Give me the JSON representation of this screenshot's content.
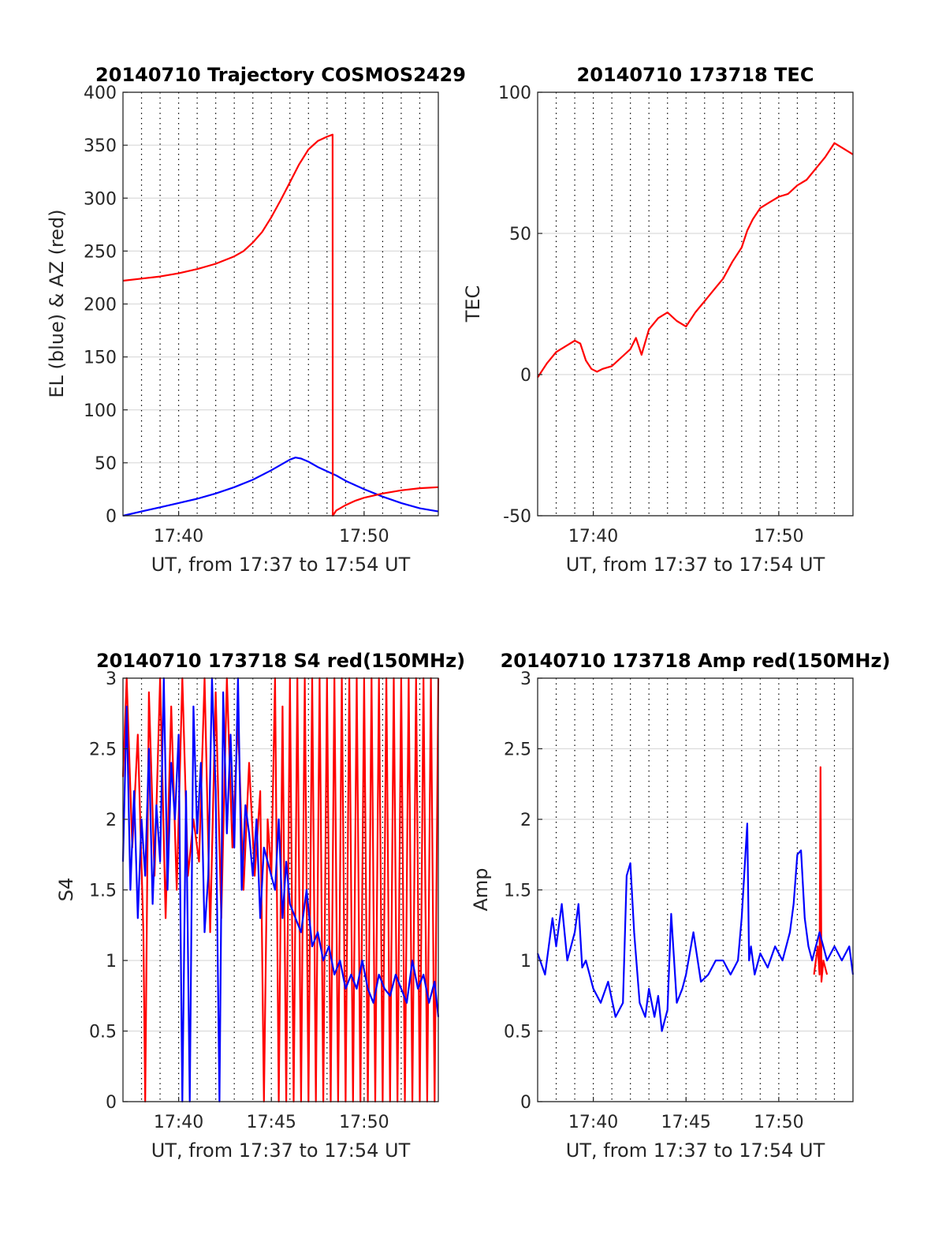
{
  "colors": {
    "red": "#ff0000",
    "blue": "#0000ff",
    "axes": "#262626",
    "grid": "#dcdcdc",
    "minor": "#000000"
  },
  "chart_data": [
    {
      "id": "traj",
      "type": "line",
      "title": "20140710 Trajectory COSMOS2429",
      "xlabel": "UT, from 17:37 to 17:54 UT",
      "ylabel": "EL (blue) & AZ (red)",
      "xlim": [
        37.0,
        54.0
      ],
      "ylim": [
        0,
        400
      ],
      "x_ticks": [
        40,
        50
      ],
      "x_tick_labels": [
        "17:40",
        "17:50"
      ],
      "y_ticks": [
        0,
        50,
        100,
        150,
        200,
        250,
        300,
        350,
        400
      ],
      "y_tick_labels": [
        "0",
        "50",
        "100",
        "150",
        "200",
        "250",
        "300",
        "350",
        "400"
      ],
      "minor_x": [
        38,
        39,
        40,
        41,
        42,
        43,
        44,
        45,
        46,
        47,
        48,
        49,
        50,
        51,
        52,
        53
      ],
      "series": [
        {
          "name": "EL (blue)",
          "color": "blue",
          "x": [
            37.0,
            38.0,
            39.0,
            40.0,
            41.0,
            42.0,
            43.0,
            44.0,
            45.0,
            45.5,
            46.0,
            46.3,
            46.6,
            47.0,
            47.5,
            48.0,
            48.5,
            49.0,
            50.0,
            51.0,
            52.0,
            53.0,
            54.0
          ],
          "y": [
            0,
            4,
            8,
            12,
            16,
            21,
            27,
            34,
            43,
            48,
            53,
            55,
            54,
            51,
            46,
            42,
            38,
            33,
            25,
            18,
            12,
            7,
            4
          ]
        },
        {
          "name": "AZ (red)",
          "color": "red",
          "x": [
            37.0,
            38.0,
            39.0,
            40.0,
            41.0,
            42.0,
            43.0,
            43.5,
            44.0,
            44.5,
            45.0,
            45.5,
            46.0,
            46.5,
            47.0,
            47.5,
            48.0,
            48.3,
            48.31,
            48.5,
            49.0,
            49.5,
            50.0,
            51.0,
            52.0,
            53.0,
            54.0
          ],
          "y": [
            222,
            224,
            226,
            229,
            233,
            238,
            245,
            250,
            258,
            268,
            282,
            298,
            315,
            332,
            346,
            354,
            358,
            360,
            0,
            5,
            10,
            14,
            17,
            21,
            24,
            26,
            27
          ]
        }
      ]
    },
    {
      "id": "tec",
      "type": "line",
      "title": "20140710 173718 TEC",
      "xlabel": "UT, from 17:37 to 17:54 UT",
      "ylabel": "TEC",
      "xlim": [
        37.0,
        54.0
      ],
      "ylim": [
        -50,
        100
      ],
      "x_ticks": [
        40,
        50
      ],
      "x_tick_labels": [
        "17:40",
        "17:50"
      ],
      "y_ticks": [
        -50,
        0,
        50,
        100
      ],
      "y_tick_labels": [
        "-50",
        "0",
        "50",
        "100"
      ],
      "minor_x": [
        38,
        39,
        40,
        41,
        42,
        43,
        44,
        45,
        46,
        47,
        48,
        49,
        50,
        51,
        52,
        53
      ],
      "series": [
        {
          "name": "",
          "color": "red",
          "x": [
            37.0,
            37.5,
            38.0,
            38.5,
            39.0,
            39.3,
            39.6,
            39.9,
            40.2,
            40.5,
            41.0,
            41.5,
            42.0,
            42.3,
            42.6,
            43.0,
            43.5,
            44.0,
            44.5,
            45.0,
            45.5,
            46.0,
            46.5,
            47.0,
            47.5,
            48.0,
            48.3,
            48.6,
            49.0,
            49.5,
            50.0,
            50.5,
            51.0,
            51.5,
            52.0,
            52.5,
            53.0,
            53.5,
            54.0
          ],
          "y": [
            -1,
            4,
            8,
            10,
            12,
            11,
            5,
            2,
            1,
            2,
            3,
            6,
            9,
            13,
            7,
            16,
            20,
            22,
            19,
            17,
            22,
            26,
            30,
            34,
            40,
            45,
            51,
            55,
            59,
            61,
            63,
            64,
            67,
            69,
            73,
            77,
            82,
            80,
            78
          ]
        }
      ]
    },
    {
      "id": "s4",
      "type": "line",
      "title": "20140710 173718 S4 red(150MHz)",
      "xlabel": "UT, from 17:37 to 17:54 UT",
      "ylabel": "S4",
      "xlim": [
        37.0,
        54.0
      ],
      "ylim": [
        0,
        3
      ],
      "x_ticks": [
        40,
        45,
        50
      ],
      "x_tick_labels": [
        "17:40",
        "17:45",
        "17:50"
      ],
      "y_ticks": [
        0,
        0.5,
        1,
        1.5,
        2,
        2.5,
        3
      ],
      "y_tick_labels": [
        "0",
        "0.5",
        "1",
        "1.5",
        "2",
        "2.5",
        "3"
      ],
      "minor_x": [
        38,
        39,
        40,
        41,
        42,
        43,
        44,
        45,
        46,
        47,
        48,
        49,
        50,
        51,
        52,
        53
      ],
      "series": [
        {
          "name": "",
          "color": "red",
          "x": [
            37.0,
            37.2,
            37.5,
            37.8,
            38.1,
            38.2,
            38.4,
            38.7,
            39.0,
            39.3,
            39.6,
            39.9,
            40.2,
            40.5,
            40.8,
            41.1,
            41.4,
            41.7,
            42.0,
            42.3,
            42.6,
            42.9,
            43.2,
            43.5,
            43.8,
            44.1,
            44.4,
            44.6,
            44.8,
            45.0,
            45.2,
            45.4,
            45.6,
            45.8,
            46.0,
            46.2,
            46.4,
            46.6,
            46.8,
            47.0,
            47.2,
            47.4,
            47.6,
            47.8,
            48.0,
            48.2,
            48.4,
            48.6,
            48.8,
            49.0,
            49.2,
            49.4,
            49.6,
            49.8,
            50.0,
            50.2,
            50.4,
            50.6,
            50.8,
            51.0,
            51.2,
            51.4,
            51.6,
            51.8,
            52.0,
            52.2,
            52.4,
            52.6,
            52.8,
            53.0,
            53.2,
            53.4,
            53.6,
            53.8,
            54.0
          ],
          "y": [
            2.3,
            3.0,
            1.8,
            2.6,
            1.2,
            0.0,
            2.9,
            1.6,
            3.0,
            1.3,
            2.8,
            1.5,
            3.0,
            1.6,
            2.0,
            1.7,
            3.0,
            1.2,
            2.9,
            1.3,
            3.0,
            1.8,
            2.7,
            1.5,
            2.4,
            1.6,
            2.2,
            0.0,
            2.0,
            1.6,
            3.0,
            0.0,
            2.8,
            0.0,
            3.0,
            0.0,
            3.0,
            0.0,
            3.0,
            0.0,
            3.0,
            0.0,
            3.0,
            0.0,
            3.0,
            0.0,
            3.0,
            0.0,
            3.0,
            0.0,
            3.0,
            0.0,
            3.0,
            0.0,
            3.0,
            0.0,
            3.0,
            0.0,
            3.0,
            0.0,
            3.0,
            0.0,
            3.0,
            0.0,
            3.0,
            0.0,
            3.0,
            0.0,
            3.0,
            0.0,
            3.0,
            0.0,
            3.0,
            0.0,
            3.0
          ]
        },
        {
          "name": "",
          "color": "blue",
          "x": [
            37.0,
            37.2,
            37.4,
            37.6,
            37.8,
            38.0,
            38.2,
            38.4,
            38.6,
            38.8,
            39.0,
            39.2,
            39.4,
            39.6,
            39.8,
            40.0,
            40.2,
            40.4,
            40.6,
            40.8,
            41.0,
            41.2,
            41.4,
            41.6,
            41.8,
            42.0,
            42.2,
            42.4,
            42.6,
            42.8,
            43.0,
            43.2,
            43.4,
            43.6,
            43.8,
            44.0,
            44.2,
            44.4,
            44.6,
            44.8,
            45.0,
            45.2,
            45.4,
            45.6,
            45.8,
            46.0,
            46.3,
            46.6,
            46.9,
            47.2,
            47.5,
            47.8,
            48.1,
            48.4,
            48.7,
            49.0,
            49.3,
            49.6,
            49.9,
            50.2,
            50.5,
            50.8,
            51.1,
            51.4,
            51.7,
            52.0,
            52.3,
            52.6,
            52.9,
            53.2,
            53.5,
            53.8,
            54.0
          ],
          "y": [
            1.7,
            2.8,
            1.5,
            2.2,
            1.3,
            2.0,
            1.6,
            2.5,
            1.4,
            2.1,
            1.7,
            3.0,
            1.5,
            2.4,
            2.0,
            2.6,
            0.0,
            2.2,
            0.0,
            2.8,
            1.9,
            2.4,
            1.2,
            1.6,
            3.0,
            2.2,
            0.0,
            2.9,
            1.9,
            2.6,
            1.8,
            3.0,
            1.5,
            2.1,
            1.9,
            1.6,
            2.0,
            1.3,
            1.8,
            1.7,
            1.6,
            1.5,
            2.0,
            1.3,
            1.7,
            1.4,
            1.3,
            1.2,
            1.5,
            1.1,
            1.2,
            1.0,
            1.1,
            0.9,
            1.0,
            0.8,
            0.9,
            0.8,
            1.0,
            0.8,
            0.7,
            0.9,
            0.8,
            0.75,
            0.9,
            0.8,
            0.7,
            1.0,
            0.8,
            0.9,
            0.7,
            0.85,
            0.6
          ]
        }
      ]
    },
    {
      "id": "amp",
      "type": "line",
      "title": "20140710 173718 Amp red(150MHz)",
      "xlabel": "UT, from 17:37 to 17:54 UT",
      "ylabel": "Amp",
      "xlim": [
        37.0,
        54.0
      ],
      "ylim": [
        0,
        3
      ],
      "x_ticks": [
        40,
        45,
        50
      ],
      "x_tick_labels": [
        "17:40",
        "17:45",
        "17:50"
      ],
      "y_ticks": [
        0,
        0.5,
        1,
        1.5,
        2,
        2.5,
        3
      ],
      "y_tick_labels": [
        "0",
        "0.5",
        "1",
        "1.5",
        "2",
        "2.5",
        "3"
      ],
      "minor_x": [
        38,
        39,
        40,
        41,
        42,
        43,
        44,
        45,
        46,
        47,
        48,
        49,
        50,
        51,
        52,
        53
      ],
      "series": [
        {
          "name": "",
          "color": "red",
          "x": [
            51.9,
            52.1,
            52.2,
            52.25,
            52.3,
            52.4,
            52.6
          ],
          "y": [
            0.9,
            1.1,
            0.9,
            2.37,
            0.85,
            1.0,
            0.9
          ]
        },
        {
          "name": "",
          "color": "blue",
          "x": [
            37.0,
            37.4,
            37.8,
            38.0,
            38.3,
            38.6,
            39.0,
            39.2,
            39.4,
            39.6,
            40.0,
            40.4,
            40.8,
            41.2,
            41.6,
            41.8,
            42.0,
            42.2,
            42.5,
            42.8,
            43.0,
            43.3,
            43.5,
            43.7,
            44.0,
            44.2,
            44.5,
            44.8,
            45.0,
            45.4,
            45.8,
            46.2,
            46.6,
            47.0,
            47.4,
            47.8,
            48.0,
            48.3,
            48.4,
            48.5,
            48.7,
            49.0,
            49.4,
            49.8,
            50.2,
            50.6,
            50.8,
            51.0,
            51.2,
            51.4,
            51.6,
            51.8,
            52.2,
            52.6,
            53.0,
            53.4,
            53.8,
            54.0
          ],
          "y": [
            1.05,
            0.9,
            1.3,
            1.1,
            1.4,
            1.0,
            1.2,
            1.4,
            0.95,
            1.0,
            0.8,
            0.7,
            0.85,
            0.6,
            0.7,
            1.6,
            1.69,
            1.2,
            0.7,
            0.6,
            0.8,
            0.6,
            0.75,
            0.5,
            0.65,
            1.33,
            0.7,
            0.8,
            0.9,
            1.2,
            0.85,
            0.9,
            1.0,
            1.0,
            0.9,
            1.0,
            1.3,
            1.97,
            1.0,
            1.1,
            0.9,
            1.05,
            0.95,
            1.1,
            1.0,
            1.2,
            1.4,
            1.75,
            1.78,
            1.3,
            1.1,
            1.0,
            1.2,
            1.0,
            1.1,
            1.0,
            1.1,
            0.9
          ]
        }
      ]
    }
  ]
}
